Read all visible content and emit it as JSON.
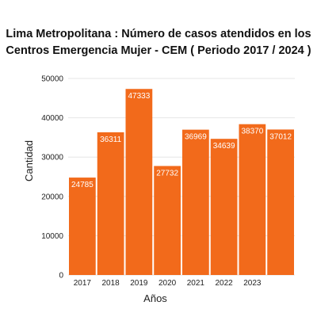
{
  "chart_data": {
    "type": "bar",
    "title": "Lima Metropolitana : Número de casos atendidos en los Centros Emergencia Mujer - CEM ( Periodo 2017 / 2024 )",
    "xlabel": "Años",
    "ylabel": "Cantidad",
    "categories": [
      "2017",
      "2018",
      "2019",
      "2020",
      "2021",
      "2022",
      "2023",
      ""
    ],
    "values": [
      24785,
      36311,
      47333,
      27732,
      36969,
      34639,
      38370,
      37012
    ],
    "data_labels": [
      "24785",
      "36311",
      "47333",
      "27732",
      "36969",
      "34639",
      "38370",
      "37012"
    ],
    "yticks": [
      "0",
      "10000",
      "20000",
      "30000",
      "40000",
      "50000"
    ],
    "ylim": [
      0,
      50000
    ],
    "grid": true,
    "legend": "none",
    "bar_color": "#f26a1b",
    "grid_color": "#e6e6e6"
  }
}
